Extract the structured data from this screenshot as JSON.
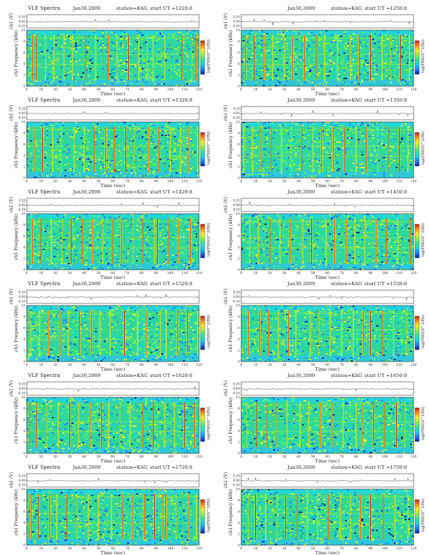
{
  "page": {
    "title": "VLF Spectra – station KAG – Jan 30 2009"
  },
  "chart_data": [
    {
      "type": "heatmap",
      "title": "VLF Spectra",
      "date": "Jan30,2009",
      "station_label": "station=KAG",
      "start_label": "start  UT  =1220:0",
      "waveform_ylabel": "ch1 (V)",
      "waveform_ticks": [
        "0.20",
        "0.00",
        "-0.20"
      ],
      "ylabel": "ch1 Frequency  (kHz)",
      "xlabel": "Time  (sec)",
      "xlim": [
        0,
        120
      ],
      "ylim": [
        0,
        10
      ],
      "x_ticks": [
        "0",
        "10",
        "20",
        "30",
        "40",
        "50",
        "60",
        "70",
        "80",
        "90",
        "100",
        "110",
        "120"
      ],
      "y_ticks": [
        "0",
        "2",
        "4",
        "6",
        "8",
        "10"
      ],
      "colorbar_label": "log(PSD)(V^2/Hz)",
      "colormap": [
        "#0b1fa0",
        "#1e7bff",
        "#19d2e0",
        "#2ee59a",
        "#8cf040",
        "#f5ee2a",
        "#ff8a1a",
        "#d81a10"
      ],
      "bursts_sec": [
        4,
        7,
        13,
        19,
        26,
        32,
        41,
        48,
        57,
        63,
        71,
        78,
        84,
        88,
        96,
        108,
        115,
        118
      ]
    },
    {
      "type": "heatmap",
      "title": "",
      "date": "Jan30,2009",
      "station_label": "station=KAG",
      "start_label": "start  UT  =1250:0",
      "waveform_ylabel": "ch1 (V)",
      "waveform_ticks": [
        "0.20",
        "0.00",
        "-0.20"
      ],
      "ylabel": "ch1 Frequency  (kHz)",
      "xlabel": "Time  (sec)",
      "xlim": [
        0,
        120
      ],
      "ylim": [
        0,
        10
      ],
      "x_ticks": [
        "0",
        "10",
        "20",
        "30",
        "40",
        "50",
        "60",
        "70",
        "80",
        "90",
        "100",
        "110",
        "120"
      ],
      "y_ticks": [
        "0",
        "2",
        "4",
        "6",
        "8",
        "10"
      ],
      "colorbar_label": "log(PSD)(V^2/Hz)",
      "colormap": [
        "#0b1fa0",
        "#1e7bff",
        "#19d2e0",
        "#2ee59a",
        "#8cf040",
        "#f5ee2a",
        "#ff8a1a",
        "#d81a10"
      ],
      "bursts_sec": [
        3,
        9,
        16,
        22,
        30,
        36,
        44,
        52,
        58,
        67,
        76,
        82,
        90,
        98,
        104,
        111,
        117
      ]
    },
    {
      "type": "heatmap",
      "title": "VLF Spectra",
      "date": "Jan30,2009",
      "station_label": "station=KAG",
      "start_label": "start  UT  =1320:0",
      "waveform_ylabel": "ch1 (V)",
      "waveform_ticks": [
        "0.20",
        "0.00",
        "-0.20"
      ],
      "ylabel": "ch1 Frequency  (kHz)",
      "xlabel": "Time  (sec)",
      "xlim": [
        0,
        120
      ],
      "ylim": [
        0,
        10
      ],
      "x_ticks": [
        "0",
        "10",
        "20",
        "30",
        "40",
        "50",
        "60",
        "70",
        "80",
        "90",
        "100",
        "110",
        "120"
      ],
      "y_ticks": [
        "0",
        "2",
        "4",
        "6",
        "8",
        "10"
      ],
      "colorbar_label": "log(PSD)(V^2/Hz)",
      "colormap": [
        "#0b1fa0",
        "#1e7bff",
        "#19d2e0",
        "#2ee59a",
        "#8cf040",
        "#f5ee2a",
        "#ff8a1a",
        "#d81a10"
      ],
      "bursts_sec": [
        5,
        11,
        18,
        24,
        33,
        40,
        47,
        55,
        61,
        69,
        75,
        85,
        92,
        100,
        107,
        113,
        119
      ]
    },
    {
      "type": "heatmap",
      "title": "",
      "date": "Jan30,2009",
      "station_label": "station=KAG",
      "start_label": "start  UT  =1350:0",
      "waveform_ylabel": "ch1 (V)",
      "waveform_ticks": [
        "0.20",
        "0.00",
        "-0.20"
      ],
      "ylabel": "ch1 Frequency  (kHz)",
      "xlabel": "Time  (sec)",
      "xlim": [
        0,
        120
      ],
      "ylim": [
        0,
        10
      ],
      "x_ticks": [
        "0",
        "10",
        "20",
        "30",
        "40",
        "50",
        "60",
        "70",
        "80",
        "90",
        "100",
        "110",
        "120"
      ],
      "y_ticks": [
        "0",
        "2",
        "4",
        "6",
        "8",
        "10"
      ],
      "colorbar_label": "log(PSD)(V^2/Hz)",
      "colormap": [
        "#0b1fa0",
        "#1e7bff",
        "#19d2e0",
        "#2ee59a",
        "#8cf040",
        "#f5ee2a",
        "#ff8a1a",
        "#d81a10"
      ],
      "bursts_sec": [
        2,
        8,
        14,
        21,
        28,
        35,
        42,
        50,
        56,
        64,
        72,
        80,
        87,
        95,
        102,
        110,
        116
      ]
    },
    {
      "type": "heatmap",
      "title": "VLF Spectra",
      "date": "Jan30,2009",
      "station_label": "station=KAG",
      "start_label": "start  UT  =1420:0",
      "waveform_ylabel": "ch1 (V)",
      "waveform_ticks": [
        "0.20",
        "0.00",
        "-0.20"
      ],
      "ylabel": "ch1 Frequency  (kHz)",
      "xlabel": "Time  (sec)",
      "xlim": [
        0,
        120
      ],
      "ylim": [
        0,
        10
      ],
      "x_ticks": [
        "0",
        "10",
        "20",
        "30",
        "40",
        "50",
        "60",
        "70",
        "80",
        "90",
        "100",
        "110",
        "120"
      ],
      "y_ticks": [
        "0",
        "2",
        "4",
        "6",
        "8",
        "10"
      ],
      "colorbar_label": "log(PSD)(V^2/Hz)",
      "colormap": [
        "#0b1fa0",
        "#1e7bff",
        "#19d2e0",
        "#2ee59a",
        "#8cf040",
        "#f5ee2a",
        "#ff8a1a",
        "#d81a10"
      ],
      "bursts_sec": [
        4,
        10,
        17,
        25,
        31,
        39,
        46,
        53,
        60,
        66,
        74,
        81,
        89,
        91,
        99,
        106,
        114
      ]
    },
    {
      "type": "heatmap",
      "title": "",
      "date": "Jan30,2009",
      "station_label": "station=KAG",
      "start_label": "start  UT  =1450:0",
      "waveform_ylabel": "ch1 (V)",
      "waveform_ticks": [
        "0.20",
        "0.00",
        "-0.20"
      ],
      "ylabel": "ch1 Frequency  (kHz)",
      "xlabel": "Time  (sec)",
      "xlim": [
        0,
        120
      ],
      "ylim": [
        0,
        10
      ],
      "x_ticks": [
        "0",
        "10",
        "20",
        "30",
        "40",
        "50",
        "60",
        "70",
        "80",
        "90",
        "100",
        "110",
        "120"
      ],
      "y_ticks": [
        "0",
        "2",
        "4",
        "6",
        "8",
        "10"
      ],
      "colorbar_label": "log(PSD)(V^2/Hz)",
      "colormap": [
        "#0b1fa0",
        "#1e7bff",
        "#19d2e0",
        "#2ee59a",
        "#8cf040",
        "#f5ee2a",
        "#ff8a1a",
        "#d81a10"
      ],
      "bursts_sec": [
        6,
        12,
        20,
        27,
        34,
        43,
        49,
        59,
        65,
        73,
        79,
        86,
        94,
        101,
        109,
        118
      ]
    },
    {
      "type": "heatmap",
      "title": "VLF Spectra",
      "date": "Jan30,2009",
      "station_label": "station=KAG",
      "start_label": "start  UT  =1520:0",
      "waveform_ylabel": "ch1 (V)",
      "waveform_ticks": [
        "0.20",
        "0.00",
        "-0.20"
      ],
      "ylabel": "ch1 Frequency  (kHz)",
      "xlabel": "Time  (sec)",
      "xlim": [
        0,
        120
      ],
      "ylim": [
        0,
        10
      ],
      "x_ticks": [
        "0",
        "10",
        "20",
        "30",
        "40",
        "50",
        "60",
        "70",
        "80",
        "90",
        "100",
        "110",
        "120"
      ],
      "y_ticks": [
        "0",
        "2",
        "4",
        "6",
        "8",
        "10"
      ],
      "colorbar_label": "log(PSD)(V^2/Hz)",
      "colormap": [
        "#0b1fa0",
        "#1e7bff",
        "#19d2e0",
        "#2ee59a",
        "#8cf040",
        "#f5ee2a",
        "#ff8a1a",
        "#d81a10"
      ],
      "bursts_sec": [
        3,
        9,
        15,
        23,
        29,
        37,
        45,
        51,
        58,
        68,
        77,
        83,
        93,
        97,
        105,
        112,
        119
      ]
    },
    {
      "type": "heatmap",
      "title": "",
      "date": "Jan30,2009",
      "station_label": "station=KAG",
      "start_label": "start  UT  =1550:0",
      "waveform_ylabel": "ch1 (V)",
      "waveform_ticks": [
        "0.20",
        "0.00",
        "-0.20"
      ],
      "ylabel": "ch1 Frequency  (kHz)",
      "xlabel": "Time  (sec)",
      "xlim": [
        0,
        120
      ],
      "ylim": [
        0,
        10
      ],
      "x_ticks": [
        "0",
        "10",
        "20",
        "30",
        "40",
        "50",
        "60",
        "70",
        "80",
        "90",
        "100",
        "110",
        "120"
      ],
      "y_ticks": [
        "0",
        "2",
        "4",
        "6",
        "8",
        "10"
      ],
      "colorbar_label": "log(PSD)(V^2/Hz)",
      "colormap": [
        "#0b1fa0",
        "#1e7bff",
        "#19d2e0",
        "#2ee59a",
        "#8cf040",
        "#f5ee2a",
        "#ff8a1a",
        "#d81a10"
      ],
      "bursts_sec": [
        5,
        13,
        19,
        26,
        33,
        38,
        48,
        54,
        62,
        70,
        78,
        85,
        90,
        98,
        106,
        115
      ]
    },
    {
      "type": "heatmap",
      "title": "VLF Spectra",
      "date": "Jan30,2009",
      "station_label": "station=KAG",
      "start_label": "start  UT  =1620:0",
      "waveform_ylabel": "ch1 (V)",
      "waveform_ticks": [
        "0.20",
        "0.00",
        "-0.20"
      ],
      "ylabel": "ch1 Frequency  (kHz)",
      "xlabel": "Time  (sec)",
      "xlim": [
        0,
        120
      ],
      "ylim": [
        0,
        10
      ],
      "x_ticks": [
        "0",
        "10",
        "20",
        "30",
        "40",
        "50",
        "60",
        "70",
        "80",
        "90",
        "100",
        "110",
        "120"
      ],
      "y_ticks": [
        "0",
        "2",
        "4",
        "6",
        "8",
        "10"
      ],
      "colorbar_label": "log(PSD)(V^2/Hz)",
      "colormap": [
        "#0b1fa0",
        "#1e7bff",
        "#19d2e0",
        "#2ee59a",
        "#8cf040",
        "#f5ee2a",
        "#ff8a1a",
        "#d81a10"
      ],
      "bursts_sec": [
        2,
        7,
        14,
        22,
        30,
        36,
        44,
        52,
        57,
        65,
        72,
        81,
        88,
        96,
        103,
        110,
        117
      ]
    },
    {
      "type": "heatmap",
      "title": "",
      "date": "Jan30,2009",
      "station_label": "station=KAG",
      "start_label": "start  UT  =1650:0",
      "waveform_ylabel": "ch1 (V)",
      "waveform_ticks": [
        "0.20",
        "0.00",
        "-0.20"
      ],
      "ylabel": "ch1 Frequency  (kHz)",
      "xlabel": "Time  (sec)",
      "xlim": [
        0,
        120
      ],
      "ylim": [
        0,
        10
      ],
      "x_ticks": [
        "0",
        "10",
        "20",
        "30",
        "40",
        "50",
        "60",
        "70",
        "80",
        "90",
        "100",
        "110",
        "120"
      ],
      "y_ticks": [
        "0",
        "2",
        "4",
        "6",
        "8",
        "10"
      ],
      "colorbar_label": "log(PSD)(V^2/Hz)",
      "colormap": [
        "#0b1fa0",
        "#1e7bff",
        "#19d2e0",
        "#2ee59a",
        "#8cf040",
        "#f5ee2a",
        "#ff8a1a",
        "#d81a10"
      ],
      "bursts_sec": [
        4,
        11,
        18,
        24,
        32,
        41,
        47,
        55,
        63,
        71,
        80,
        84,
        92,
        100,
        108,
        114
      ]
    },
    {
      "type": "heatmap",
      "title": "VLF Spectra",
      "date": "Jan30,2009",
      "station_label": "station=KAG",
      "start_label": "start  UT  =1720:0",
      "waveform_ylabel": "ch1 (V)",
      "waveform_ticks": [
        "0.20",
        "0.00",
        "-0.20"
      ],
      "ylabel": "ch1 Frequency  (kHz)",
      "xlabel": "Time  (sec)",
      "xlim": [
        0,
        120
      ],
      "ylim": [
        0,
        10
      ],
      "x_ticks": [
        "0",
        "10",
        "20",
        "30",
        "40",
        "50",
        "60",
        "70",
        "80",
        "90",
        "100",
        "110",
        "120"
      ],
      "y_ticks": [
        "0",
        "2",
        "4",
        "6",
        "8",
        "10"
      ],
      "colorbar_label": "log(PSD)(V^2/Hz)",
      "colormap": [
        "#0b1fa0",
        "#1e7bff",
        "#19d2e0",
        "#2ee59a",
        "#8cf040",
        "#f5ee2a",
        "#ff8a1a",
        "#d81a10"
      ],
      "bursts_sec": [
        3,
        8,
        16,
        21,
        28,
        35,
        43,
        50,
        59,
        67,
        74,
        82,
        89,
        95,
        97,
        104,
        113,
        118
      ]
    },
    {
      "type": "heatmap",
      "title": "",
      "date": "Jan30,2009",
      "station_label": "station=KAG",
      "start_label": "start  UT  =1750:0",
      "waveform_ylabel": "ch1 (V)",
      "waveform_ticks": [
        "0.20",
        "0.00",
        "-0.20"
      ],
      "ylabel": "ch1 Frequency  (kHz)",
      "xlabel": "Time  (sec)",
      "xlim": [
        0,
        120
      ],
      "ylim": [
        0,
        10
      ],
      "x_ticks": [
        "0",
        "10",
        "20",
        "30",
        "40",
        "50",
        "60",
        "70",
        "80",
        "90",
        "100",
        "110",
        "120"
      ],
      "y_ticks": [
        "0",
        "2",
        "4",
        "6",
        "8",
        "10"
      ],
      "colorbar_label": "log(PSD)(V^2/Hz)",
      "colormap": [
        "#0b1fa0",
        "#1e7bff",
        "#19d2e0",
        "#2ee59a",
        "#8cf040",
        "#f5ee2a",
        "#ff8a1a",
        "#d81a10"
      ],
      "bursts_sec": [
        5,
        10,
        17,
        25,
        31,
        39,
        46,
        53,
        61,
        69,
        76,
        83,
        90,
        99,
        107,
        116
      ]
    }
  ]
}
